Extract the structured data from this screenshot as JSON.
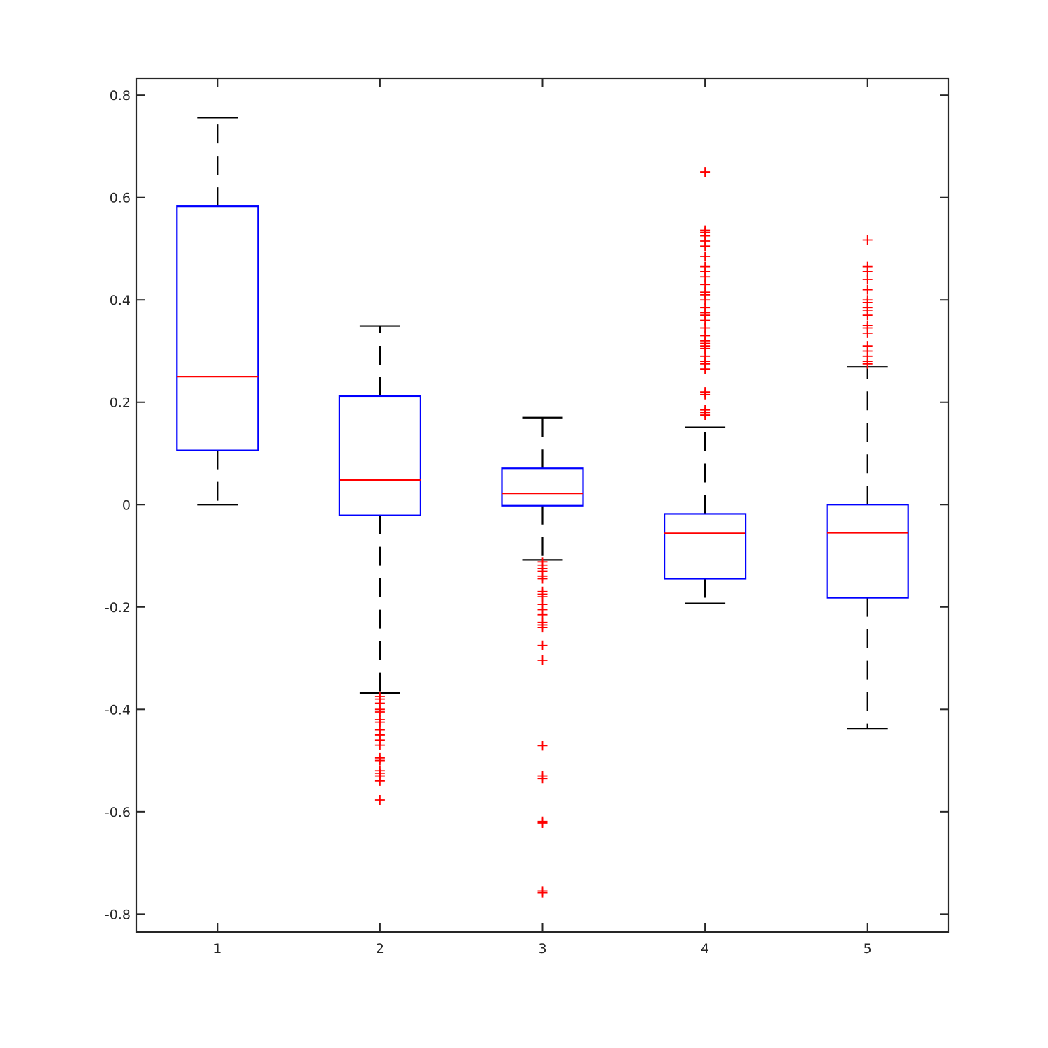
{
  "chart_data": {
    "type": "boxplot",
    "title": "",
    "xlabel": "",
    "ylabel": "",
    "xlim": [
      0.5,
      5.5
    ],
    "ylim": [
      -0.835,
      0.833
    ],
    "x_ticks": [
      "1",
      "2",
      "3",
      "4",
      "5"
    ],
    "y_ticks": [
      0.8,
      0.6,
      0.4,
      0.2,
      0,
      -0.2,
      -0.4,
      -0.6,
      -0.8
    ],
    "y_tick_labels": [
      "0.8",
      "0.6",
      "0.4",
      "0.2",
      "0",
      "-0.2",
      "-0.4",
      "-0.6",
      "-0.8"
    ],
    "grid": false,
    "colors": {
      "box": "#0000ff",
      "median": "#ff0000",
      "whisker": "#000000",
      "outlier": "#ff0000",
      "axes": "#262626"
    },
    "boxes": [
      {
        "category": "1",
        "whisker_low": 0.0,
        "q1": 0.106,
        "median": 0.25,
        "q3": 0.583,
        "whisker_high": 0.756,
        "outliers": []
      },
      {
        "category": "2",
        "whisker_low": -0.368,
        "q1": -0.021,
        "median": 0.048,
        "q3": 0.212,
        "whisker_high": 0.349,
        "outliers": [
          -0.375,
          -0.38,
          -0.388,
          -0.4,
          -0.405,
          -0.42,
          -0.425,
          -0.44,
          -0.45,
          -0.46,
          -0.47,
          -0.495,
          -0.5,
          -0.52,
          -0.525,
          -0.53,
          -0.54,
          -0.577
        ]
      },
      {
        "category": "3",
        "whisker_low": -0.108,
        "q1": -0.002,
        "median": 0.022,
        "q3": 0.071,
        "whisker_high": 0.17,
        "outliers": [
          -0.112,
          -0.118,
          -0.125,
          -0.13,
          -0.14,
          -0.145,
          -0.17,
          -0.175,
          -0.18,
          -0.195,
          -0.205,
          -0.215,
          -0.23,
          -0.235,
          -0.24,
          -0.275,
          -0.304,
          -0.471,
          -0.53,
          -0.535,
          -0.619,
          -0.622,
          -0.755,
          -0.758
        ]
      },
      {
        "category": "4",
        "whisker_low": -0.193,
        "q1": -0.145,
        "median": -0.056,
        "q3": -0.018,
        "whisker_high": 0.151,
        "outliers": [
          0.175,
          0.18,
          0.185,
          0.215,
          0.22,
          0.265,
          0.275,
          0.28,
          0.29,
          0.305,
          0.31,
          0.315,
          0.32,
          0.33,
          0.345,
          0.36,
          0.37,
          0.375,
          0.385,
          0.4,
          0.41,
          0.415,
          0.43,
          0.445,
          0.455,
          0.465,
          0.485,
          0.505,
          0.515,
          0.525,
          0.532,
          0.536,
          0.65
        ]
      },
      {
        "category": "5",
        "whisker_low": -0.438,
        "q1": -0.182,
        "median": -0.055,
        "q3": 0.0,
        "whisker_high": 0.269,
        "outliers": [
          0.275,
          0.28,
          0.29,
          0.3,
          0.31,
          0.335,
          0.345,
          0.35,
          0.37,
          0.38,
          0.385,
          0.395,
          0.4,
          0.42,
          0.44,
          0.455,
          0.465,
          0.517
        ]
      }
    ]
  }
}
